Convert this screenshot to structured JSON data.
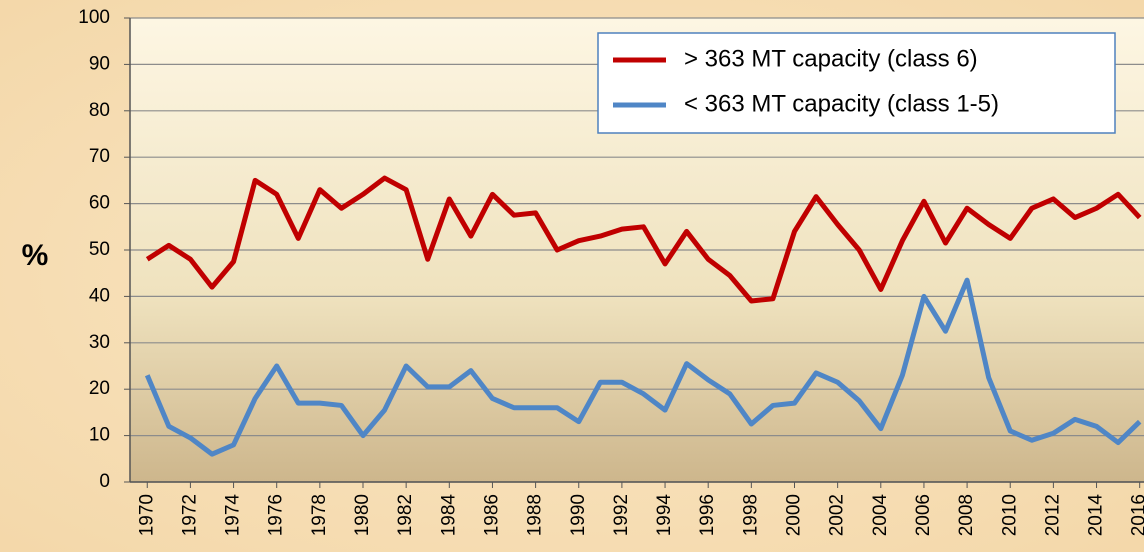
{
  "chart_data": {
    "type": "line",
    "ylabel": "%",
    "x": [
      1970,
      1971,
      1972,
      1973,
      1974,
      1975,
      1976,
      1977,
      1978,
      1979,
      1980,
      1981,
      1982,
      1983,
      1984,
      1985,
      1986,
      1987,
      1988,
      1989,
      1990,
      1991,
      1992,
      1993,
      1994,
      1995,
      1996,
      1997,
      1998,
      1999,
      2000,
      2001,
      2002,
      2003,
      2004,
      2005,
      2006,
      2007,
      2008,
      2009,
      2010,
      2011,
      2012,
      2013,
      2014,
      2015,
      2016
    ],
    "xlim": [
      1969.2,
      2016.2
    ],
    "xticks": [
      1970,
      1972,
      1974,
      1976,
      1978,
      1980,
      1982,
      1984,
      1986,
      1988,
      1990,
      1992,
      1994,
      1996,
      1998,
      2000,
      2002,
      2004,
      2006,
      2008,
      2010,
      2012,
      2014,
      2016
    ],
    "ylim": [
      0,
      100
    ],
    "yticks": [
      0,
      10,
      20,
      30,
      40,
      50,
      60,
      70,
      80,
      90,
      100
    ],
    "grid": true,
    "legend": "upper right",
    "series": [
      {
        "name": "> 363 MT capacity (class 6)",
        "color": "#c00000",
        "values": [
          48,
          51,
          48,
          42,
          47.5,
          65,
          62,
          52.5,
          63,
          59,
          62,
          65.5,
          63,
          48,
          61,
          53,
          62,
          57.5,
          58,
          50,
          52,
          53,
          54.5,
          55,
          47,
          54,
          48,
          44.5,
          39,
          39.5,
          54,
          61.5,
          55.5,
          50,
          41.5,
          52,
          60.5,
          51.5,
          59,
          55.5,
          52.5,
          59,
          61,
          57,
          59,
          62,
          57
        ]
      },
      {
        "name": "< 363 MT capacity (class 1-5)",
        "color": "#4f86c6",
        "values": [
          23,
          12,
          9.5,
          6,
          8,
          18,
          25,
          17,
          17,
          16.5,
          10,
          15.5,
          25,
          20.5,
          20.5,
          24,
          18,
          16,
          16,
          16,
          13,
          21.5,
          21.5,
          19,
          15.5,
          25.5,
          22,
          19,
          12.5,
          16.5,
          17,
          23.5,
          21.5,
          17.5,
          11.5,
          23,
          40,
          32.5,
          43.5,
          22.5,
          11,
          9,
          10.5,
          13.5,
          12,
          8.5,
          13
        ]
      }
    ]
  }
}
